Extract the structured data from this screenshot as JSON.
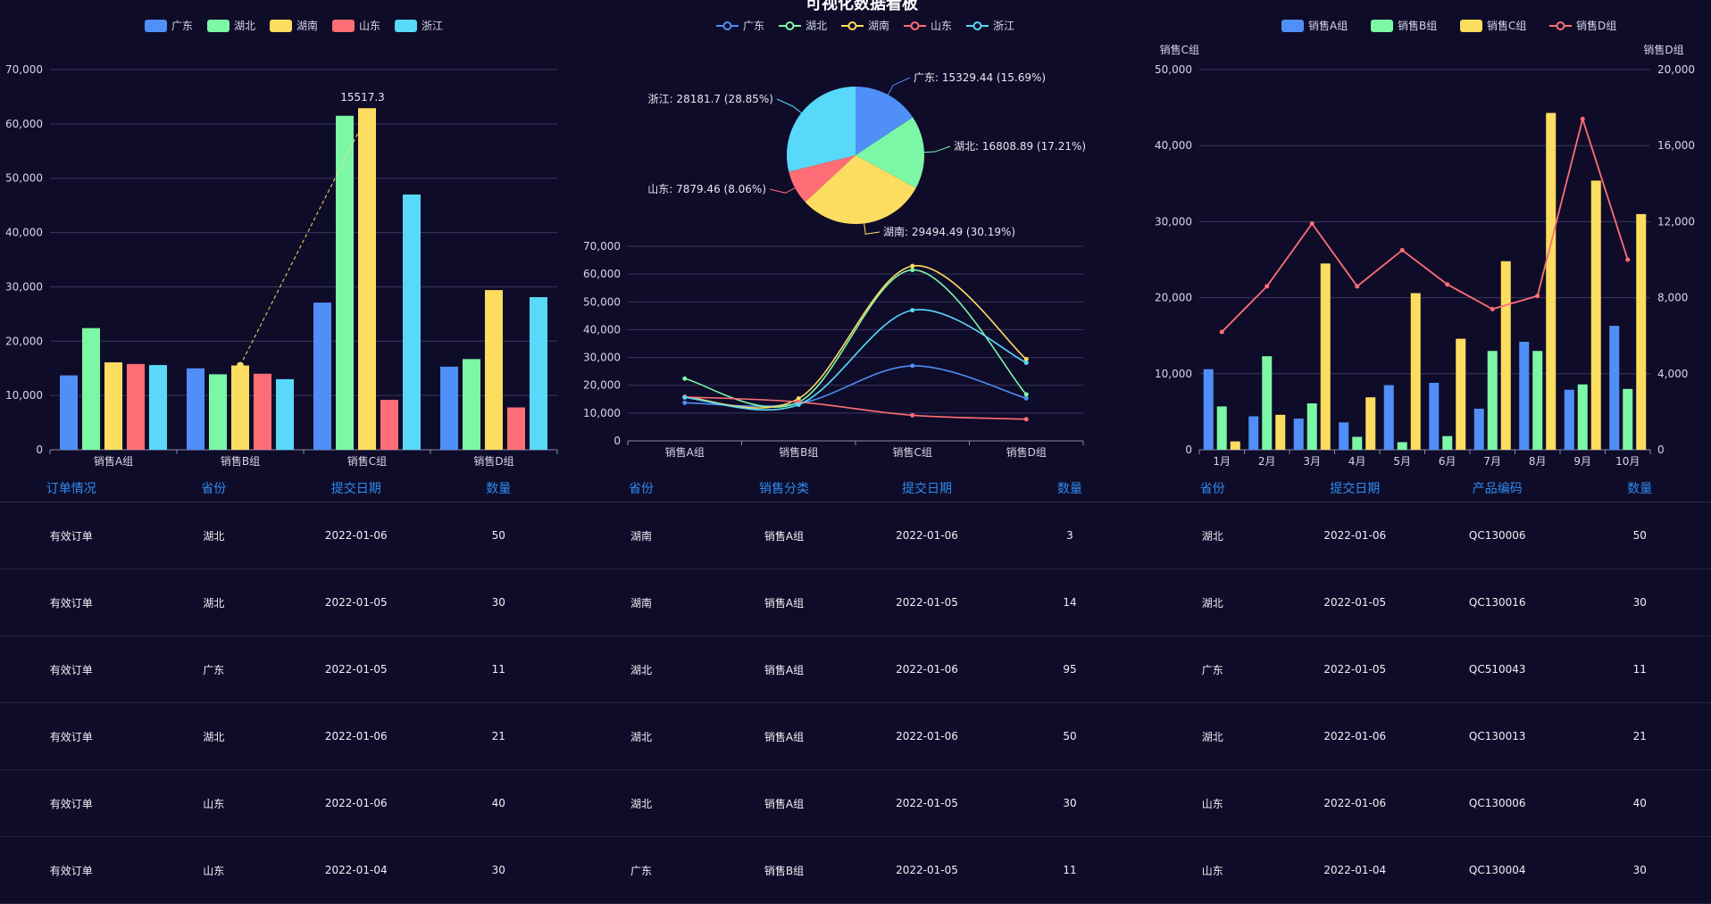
{
  "page_title": "可视化数据看板",
  "colors": {
    "广东": "#4f8ff7",
    "湖北": "#7cf7a6",
    "湖南": "#fddd60",
    "山东": "#ff6e76",
    "浙江": "#58d9f9",
    "销售D组": "#ff6e76"
  },
  "chart_data": [
    {
      "type": "bar",
      "legend": [
        "广东",
        "湖北",
        "湖南",
        "山东",
        "浙江"
      ],
      "categories": [
        "销售A组",
        "销售B组",
        "销售C组",
        "销售D组"
      ],
      "series": [
        {
          "name": "广东",
          "values": [
            13700,
            15000,
            27100,
            15300
          ]
        },
        {
          "name": "湖北",
          "values": [
            22400,
            13900,
            61500,
            16700
          ]
        },
        {
          "name": "湖南",
          "values": [
            16100,
            15517.3,
            62900,
            29400
          ]
        },
        {
          "name": "山东",
          "values": [
            15800,
            14000,
            9200,
            7800
          ]
        },
        {
          "name": "浙江",
          "values": [
            15600,
            13000,
            47000,
            28100
          ]
        }
      ],
      "ylim": [
        0,
        70000
      ],
      "yticks": [
        "0",
        "10,000",
        "20,000",
        "30,000",
        "40,000",
        "50,000",
        "60,000",
        "70,000"
      ],
      "annotation": "15517.3"
    },
    {
      "type": "pie",
      "legend": [
        "广东",
        "湖北",
        "湖南",
        "山东",
        "浙江"
      ],
      "slices": [
        {
          "name": "广东",
          "value": 15329.44,
          "label": "广东: 15329.44 (15.69%)"
        },
        {
          "name": "湖北",
          "value": 16808.89,
          "label": "湖北: 16808.89 (17.21%)"
        },
        {
          "name": "湖南",
          "value": 29494.49,
          "label": "湖南: 29494.49 (30.19%)"
        },
        {
          "name": "山东",
          "value": 7879.46,
          "label": "山东: 7879.46 (8.06%)"
        },
        {
          "name": "浙江",
          "value": 28181.7,
          "label": "浙江: 28181.7 (28.85%)"
        }
      ]
    },
    {
      "type": "line",
      "categories": [
        "销售A组",
        "销售B组",
        "销售C组",
        "销售D组"
      ],
      "series": [
        {
          "name": "广东",
          "values": [
            13700,
            13400,
            27000,
            15300
          ]
        },
        {
          "name": "湖北",
          "values": [
            22400,
            13900,
            61500,
            16700
          ]
        },
        {
          "name": "湖南",
          "values": [
            15800,
            15200,
            62900,
            29400
          ]
        },
        {
          "name": "山东",
          "values": [
            15800,
            14000,
            9200,
            7800
          ]
        },
        {
          "name": "浙江",
          "values": [
            15600,
            13000,
            47000,
            28100
          ]
        }
      ],
      "ylim": [
        0,
        70000
      ],
      "yticks": [
        "0",
        "10,000",
        "20,000",
        "30,000",
        "40,000",
        "50,000",
        "60,000",
        "70,000"
      ]
    },
    {
      "type": "bar",
      "legend": [
        "销售A组",
        "销售B组",
        "销售C组",
        "销售D组"
      ],
      "categories": [
        "1月",
        "2月",
        "3月",
        "4月",
        "5月",
        "6月",
        "7月",
        "8月",
        "9月",
        "10月"
      ],
      "left_axis_name": "销售C组",
      "right_axis_name": "销售D组",
      "series": [
        {
          "name": "销售A组",
          "values": [
            10600,
            4400,
            4100,
            3600,
            8500,
            8800,
            5400,
            14200,
            7900,
            16300
          ]
        },
        {
          "name": "销售B组",
          "values": [
            5700,
            12300,
            6100,
            1700,
            1000,
            1800,
            13000,
            13000,
            8600,
            8000
          ]
        },
        {
          "name": "销售C组",
          "values": [
            1100,
            4600,
            24500,
            6900,
            20600,
            14600,
            24800,
            44300,
            35400,
            31000
          ]
        }
      ],
      "line_series": {
        "name": "销售D组",
        "values": [
          6200,
          8600,
          11900,
          8600,
          10500,
          8700,
          7400,
          8100,
          17400,
          10000
        ]
      },
      "ylim": [
        0,
        50000
      ],
      "y2lim": [
        0,
        20000
      ],
      "yticks": [
        "0",
        "10,000",
        "20,000",
        "30,000",
        "40,000",
        "50,000"
      ],
      "y2ticks": [
        "0",
        "4,000",
        "8,000",
        "12,000",
        "16,000",
        "20,000"
      ]
    }
  ],
  "tables": {
    "left": {
      "headers": [
        "订单情况",
        "省份",
        "提交日期",
        "数量"
      ],
      "rows": [
        [
          "有效订单",
          "湖北",
          "2022-01-06",
          "50"
        ],
        [
          "有效订单",
          "湖北",
          "2022-01-05",
          "30"
        ],
        [
          "有效订单",
          "广东",
          "2022-01-05",
          "11"
        ],
        [
          "有效订单",
          "湖北",
          "2022-01-06",
          "21"
        ],
        [
          "有效订单",
          "山东",
          "2022-01-06",
          "40"
        ],
        [
          "有效订单",
          "山东",
          "2022-01-04",
          "30"
        ]
      ]
    },
    "mid": {
      "headers": [
        "省份",
        "销售分类",
        "提交日期",
        "数量"
      ],
      "rows": [
        [
          "湖南",
          "销售A组",
          "2022-01-06",
          "3"
        ],
        [
          "湖南",
          "销售A组",
          "2022-01-05",
          "14"
        ],
        [
          "湖北",
          "销售A组",
          "2022-01-06",
          "95"
        ],
        [
          "湖北",
          "销售A组",
          "2022-01-06",
          "50"
        ],
        [
          "湖北",
          "销售A组",
          "2022-01-05",
          "30"
        ],
        [
          "广东",
          "销售B组",
          "2022-01-05",
          "11"
        ]
      ]
    },
    "right": {
      "headers": [
        "省份",
        "提交日期",
        "产品编码",
        "数量"
      ],
      "rows": [
        [
          "湖北",
          "2022-01-06",
          "QC130006",
          "50"
        ],
        [
          "湖北",
          "2022-01-05",
          "QC130016",
          "30"
        ],
        [
          "广东",
          "2022-01-05",
          "QC510043",
          "11"
        ],
        [
          "湖北",
          "2022-01-06",
          "QC130013",
          "21"
        ],
        [
          "山东",
          "2022-01-06",
          "QC130006",
          "40"
        ],
        [
          "山东",
          "2022-01-04",
          "QC130004",
          "30"
        ]
      ]
    }
  }
}
